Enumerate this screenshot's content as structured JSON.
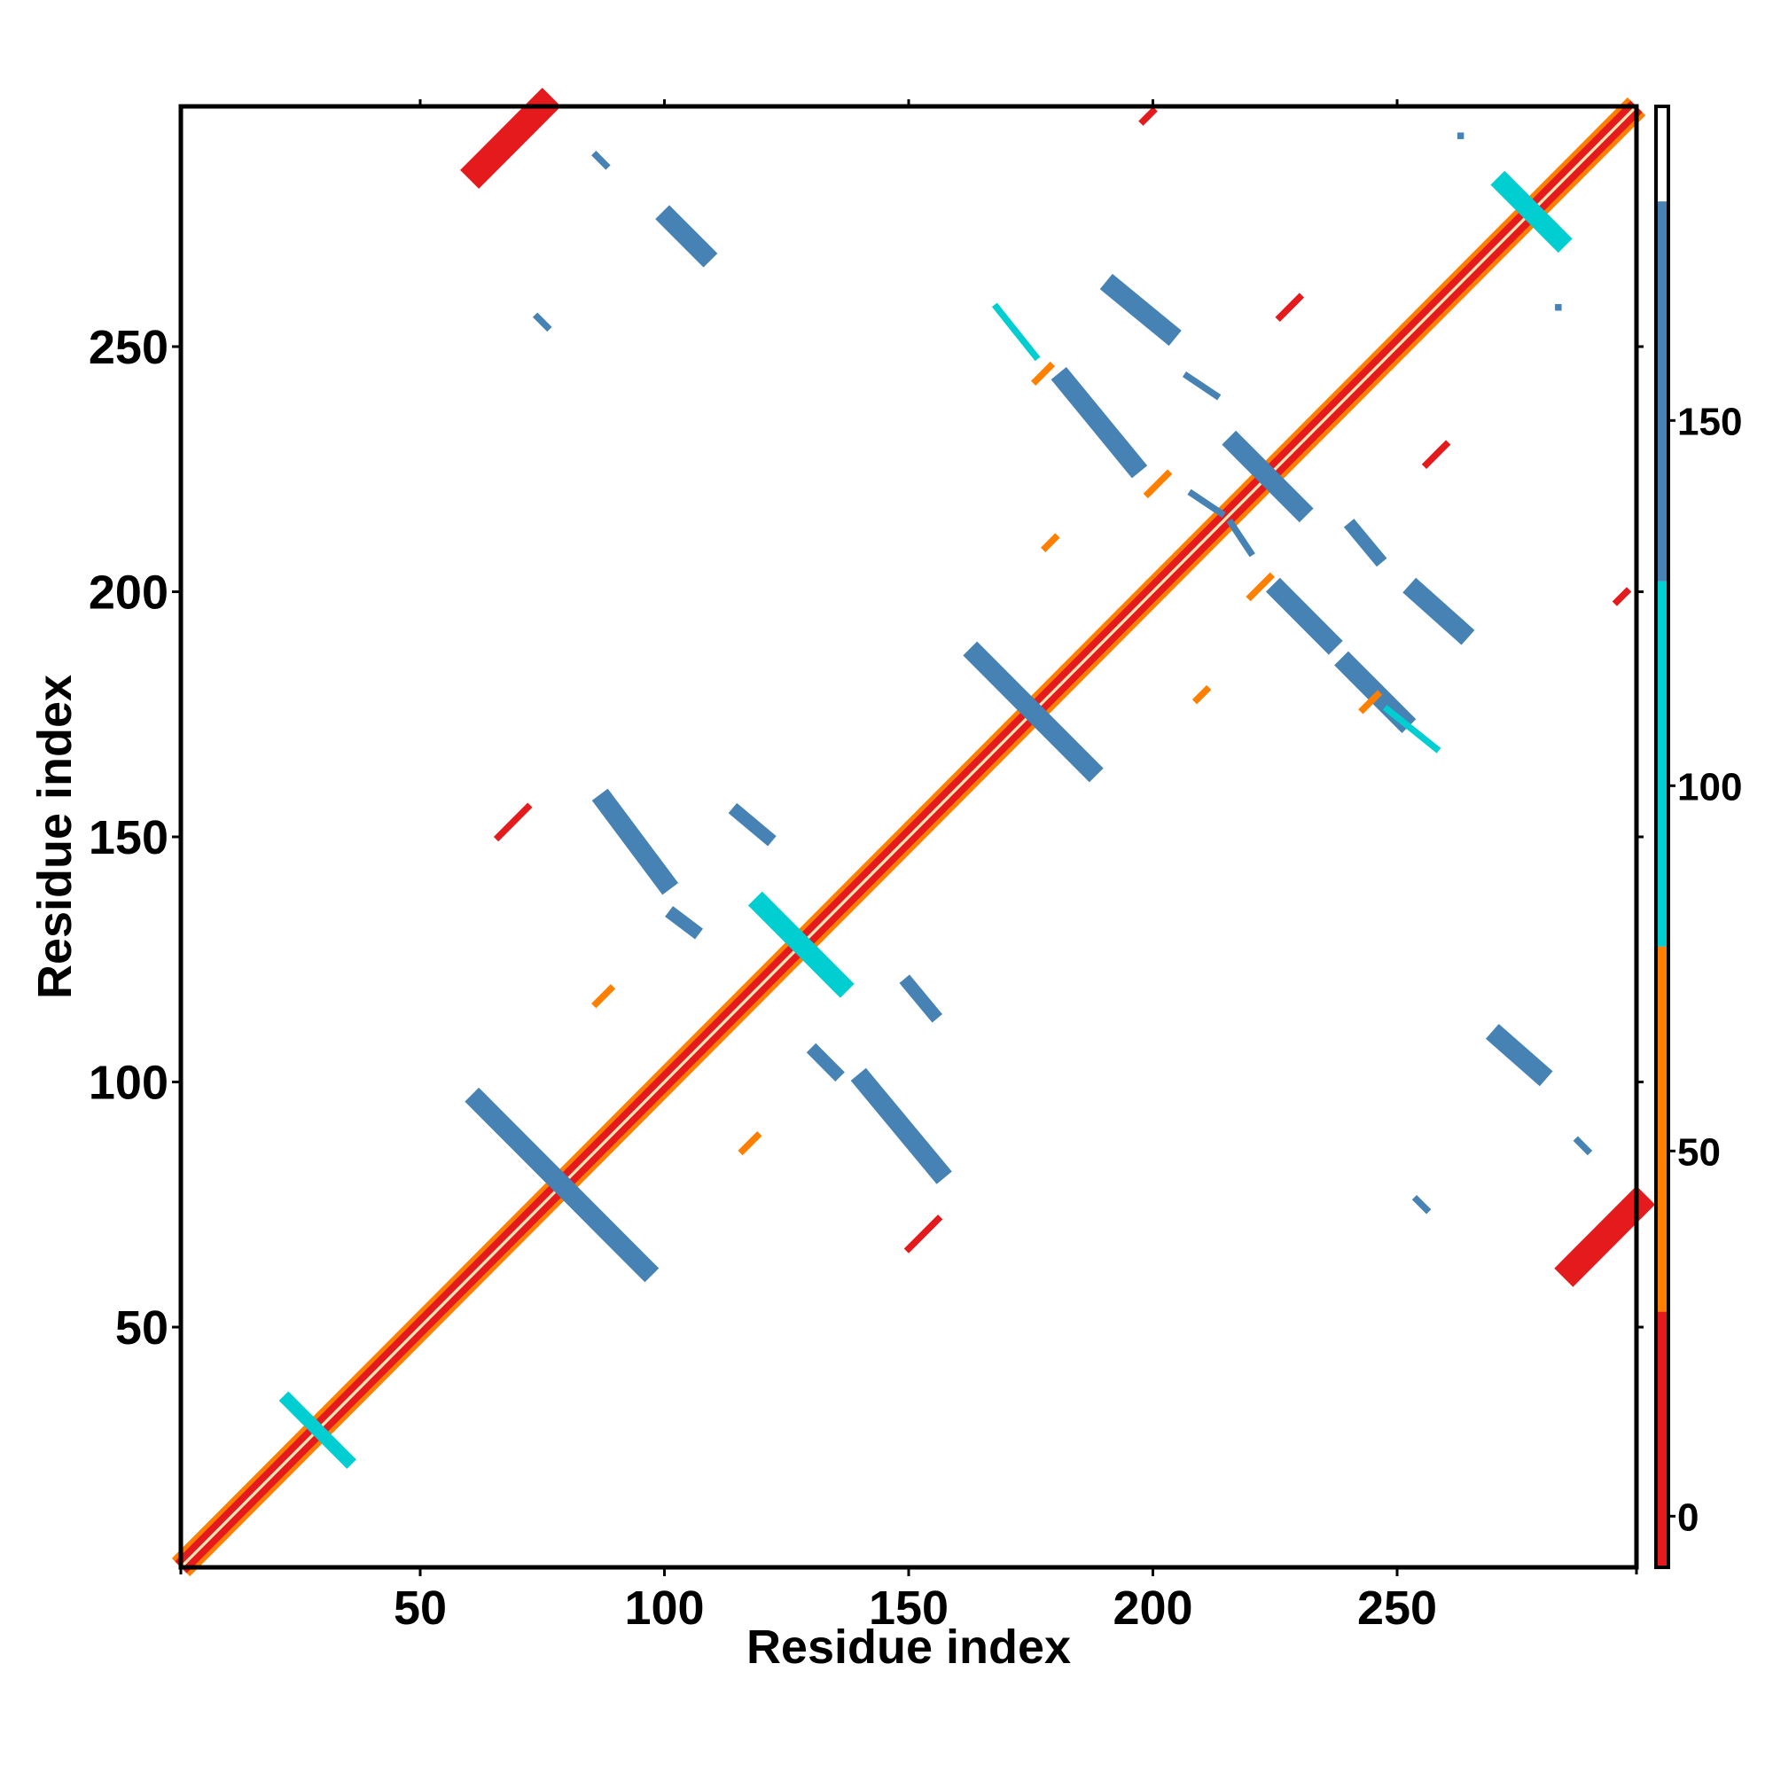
{
  "chart_data": {
    "type": "heatmap",
    "title": "",
    "xlabel": "Residue index",
    "ylabel": "Residue index",
    "xlim": [
      1,
      299
    ],
    "ylim": [
      1,
      299
    ],
    "x_ticks": [
      50,
      100,
      150,
      200,
      250
    ],
    "y_ticks": [
      50,
      100,
      150,
      200,
      250
    ],
    "colorbar": {
      "ticks": [
        0,
        50,
        100,
        150
      ],
      "range": [
        -7,
        193
      ],
      "bands": [
        {
          "from": -7,
          "to": 28,
          "color": "#e41a1c"
        },
        {
          "from": 28,
          "to": 78,
          "color": "#ff7f00"
        },
        {
          "from": 78,
          "to": 128,
          "color": "#00ced1"
        },
        {
          "from": 128,
          "to": 180,
          "color": "#4682b4"
        },
        {
          "from": 180,
          "to": 193,
          "color": "#ffffff"
        }
      ]
    },
    "colors": {
      "red": "#e41a1c",
      "orange": "#ff7f00",
      "cyan": "#00ced1",
      "blue": "#4682b4"
    },
    "diagonal": {
      "from": 1,
      "to": 299
    },
    "contact_segments": [
      {
        "x1": 62,
        "y1": 96,
        "x2": 96,
        "y2": 62,
        "color": "blue",
        "width": 3
      },
      {
        "x1": 88,
        "y1": 157,
        "x2": 100,
        "y2": 141,
        "color": "blue",
        "width": 3
      },
      {
        "x1": 115,
        "y1": 155,
        "x2": 121,
        "y2": 150,
        "color": "blue",
        "width": 2
      },
      {
        "x1": 102,
        "y1": 134,
        "x2": 106,
        "y2": 131,
        "color": "blue",
        "width": 2
      },
      {
        "x1": 131,
        "y1": 106,
        "x2": 135,
        "y2": 102,
        "color": "blue",
        "width": 2
      },
      {
        "x1": 141,
        "y1": 100,
        "x2": 156,
        "y2": 82,
        "color": "blue",
        "width": 3
      },
      {
        "x1": 150,
        "y1": 120,
        "x2": 155,
        "y2": 114,
        "color": "blue",
        "width": 2
      },
      {
        "x1": 164,
        "y1": 187,
        "x2": 187,
        "y2": 164,
        "color": "blue",
        "width": 3
      },
      {
        "x1": 182,
        "y1": 243,
        "x2": 196,
        "y2": 226,
        "color": "blue",
        "width": 3
      },
      {
        "x1": 192,
        "y1": 262,
        "x2": 203,
        "y2": 253,
        "color": "blue",
        "width": 3
      },
      {
        "x1": 207,
        "y1": 244,
        "x2": 213,
        "y2": 240,
        "color": "blue",
        "width": 1
      },
      {
        "x1": 217,
        "y1": 230,
        "x2": 230,
        "y2": 217,
        "color": "blue",
        "width": 3
      },
      {
        "x1": 226,
        "y1": 200,
        "x2": 236,
        "y2": 190,
        "color": "blue",
        "width": 3
      },
      {
        "x1": 240,
        "y1": 185,
        "x2": 251,
        "y2": 174,
        "color": "blue",
        "width": 3
      },
      {
        "x1": 241,
        "y1": 213,
        "x2": 246,
        "y2": 207,
        "color": "blue",
        "width": 2
      },
      {
        "x1": 254,
        "y1": 200,
        "x2": 263,
        "y2": 192,
        "color": "blue",
        "width": 3
      },
      {
        "x1": 101,
        "y1": 276,
        "x2": 108,
        "y2": 269,
        "color": "blue",
        "width": 3
      },
      {
        "x1": 271,
        "y1": 109,
        "x2": 279,
        "y2": 102,
        "color": "blue",
        "width": 3
      },
      {
        "x1": 272,
        "y1": 283,
        "x2": 283,
        "y2": 272,
        "color": "cyan",
        "width": 3
      },
      {
        "x1": 120,
        "y1": 136,
        "x2": 136,
        "y2": 120,
        "color": "cyan",
        "width": 3
      },
      {
        "x1": 23,
        "y1": 35,
        "x2": 35,
        "y2": 23,
        "color": "cyan",
        "width": 2
      },
      {
        "x1": 62,
        "y1": 286,
        "x2": 75,
        "y2": 299,
        "color": "red",
        "width": 4
      },
      {
        "x1": 286,
        "y1": 62,
        "x2": 299,
        "y2": 75,
        "color": "red",
        "width": 4
      },
      {
        "x1": 66,
        "y1": 150,
        "x2": 72,
        "y2": 156,
        "color": "red",
        "width": 1
      },
      {
        "x1": 150,
        "y1": 66,
        "x2": 156,
        "y2": 72,
        "color": "red",
        "width": 1
      },
      {
        "x1": 86,
        "y1": 289,
        "x2": 88,
        "y2": 287,
        "color": "blue",
        "width": 1
      },
      {
        "x1": 287,
        "y1": 88,
        "x2": 289,
        "y2": 86,
        "color": "blue",
        "width": 1
      },
      {
        "x1": 74,
        "y1": 256,
        "x2": 76,
        "y2": 254,
        "color": "blue",
        "width": 1
      },
      {
        "x1": 254,
        "y1": 76,
        "x2": 256,
        "y2": 74,
        "color": "blue",
        "width": 1
      },
      {
        "x1": 168,
        "y1": 258,
        "x2": 176,
        "y2": 248,
        "color": "cyan",
        "width": 1
      },
      {
        "x1": 248,
        "y1": 176,
        "x2": 258,
        "y2": 168,
        "color": "cyan",
        "width": 1
      },
      {
        "x1": 198,
        "y1": 296,
        "x2": 200,
        "y2": 298,
        "color": "red",
        "width": 1
      },
      {
        "x1": 226,
        "y1": 256,
        "x2": 230,
        "y2": 260,
        "color": "red",
        "width": 1
      },
      {
        "x1": 256,
        "y1": 226,
        "x2": 260,
        "y2": 230,
        "color": "red",
        "width": 1
      },
      {
        "x1": 295,
        "y1": 198,
        "x2": 297,
        "y2": 200,
        "color": "red",
        "width": 1
      },
      {
        "x1": 86,
        "y1": 116,
        "x2": 89,
        "y2": 119,
        "color": "orange",
        "width": 1
      },
      {
        "x1": 116,
        "y1": 86,
        "x2": 119,
        "y2": 89,
        "color": "orange",
        "width": 1
      },
      {
        "x1": 178,
        "y1": 209,
        "x2": 180,
        "y2": 211,
        "color": "orange",
        "width": 1
      },
      {
        "x1": 209,
        "y1": 178,
        "x2": 211,
        "y2": 180,
        "color": "orange",
        "width": 1
      },
      {
        "x1": 199,
        "y1": 220,
        "x2": 203,
        "y2": 224,
        "color": "orange",
        "width": 1
      },
      {
        "x1": 220,
        "y1": 199,
        "x2": 224,
        "y2": 203,
        "color": "orange",
        "width": 1
      },
      {
        "x1": 176,
        "y1": 243,
        "x2": 179,
        "y2": 246,
        "color": "orange",
        "width": 1
      },
      {
        "x1": 243,
        "y1": 176,
        "x2": 246,
        "y2": 179,
        "color": "orange",
        "width": 1
      },
      {
        "x1": 208,
        "y1": 220,
        "x2": 214,
        "y2": 216,
        "color": "blue",
        "width": 1
      },
      {
        "x1": 216,
        "y1": 214,
        "x2": 220,
        "y2": 208,
        "color": "blue",
        "width": 1
      },
      {
        "x1": 263,
        "y1": 293,
        "x2": 263,
        "y2": 293,
        "color": "blue",
        "width": 1
      },
      {
        "x1": 283,
        "y1": 258,
        "x2": 283,
        "y2": 258,
        "color": "blue",
        "width": 1
      }
    ]
  }
}
